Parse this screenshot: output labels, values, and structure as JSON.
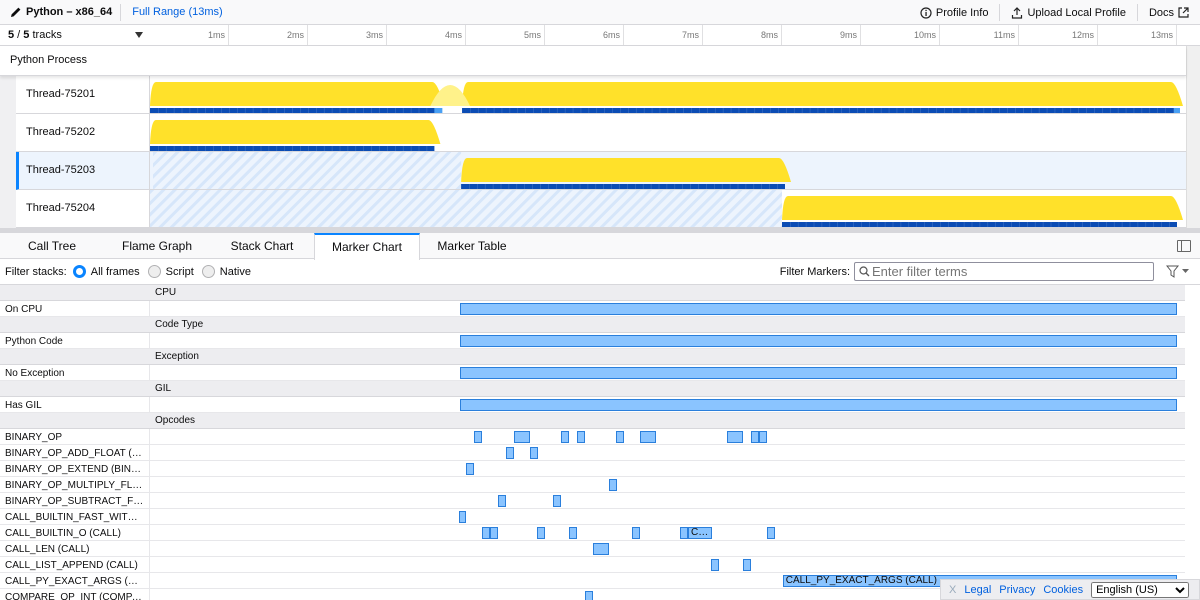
{
  "topbar": {
    "title": "Python – x86_64",
    "range": "Full Range (13ms)",
    "profile_info": "Profile Info",
    "upload": "Upload Local Profile",
    "docs": "Docs"
  },
  "timeline": {
    "tracks_visible": "5",
    "tracks_total": "5",
    "tracks_suffix": " tracks",
    "ticks": [
      "1ms",
      "2ms",
      "3ms",
      "4ms",
      "5ms",
      "6ms",
      "7ms",
      "8ms",
      "9ms",
      "10ms",
      "11ms",
      "12ms",
      "13ms"
    ],
    "duration_ms": 13,
    "process": "Python Process",
    "threads": [
      {
        "name": "Thread-75201",
        "active": [
          [
            0,
            3.65
          ],
          [
            3.95,
            13.0
          ]
        ],
        "selected": false
      },
      {
        "name": "Thread-75202",
        "active": [
          [
            0,
            3.6
          ]
        ],
        "selected": false
      },
      {
        "name": "Thread-75203",
        "active": [
          [
            3.9,
            8.0
          ]
        ],
        "selected": true
      },
      {
        "name": "Thread-75204",
        "active": [
          [
            8.0,
            13.0
          ]
        ],
        "selected": false
      }
    ],
    "colors": {
      "cpu_graph": "#ffe12a",
      "samples": "#0b4cb4",
      "selection": "#0a84ff"
    }
  },
  "tabs": [
    {
      "label": "Call Tree"
    },
    {
      "label": "Flame Graph"
    },
    {
      "label": "Stack Chart"
    },
    {
      "label": "Marker Chart",
      "active": true
    },
    {
      "label": "Marker Table"
    }
  ],
  "filter": {
    "label": "Filter stacks:",
    "options": [
      "All frames",
      "Script",
      "Native"
    ],
    "selected": "All frames",
    "markers_label": "Filter Markers:",
    "markers_placeholder": "Enter filter terms"
  },
  "marker_chart": {
    "rows": [
      {
        "group": "CPU"
      },
      {
        "name": "On CPU",
        "markers": [
          [
            3.92,
            13.0
          ]
        ]
      },
      {
        "group": "Code Type"
      },
      {
        "name": "Python Code",
        "markers": [
          [
            3.92,
            13.0
          ]
        ]
      },
      {
        "group": "Exception"
      },
      {
        "name": "No Exception",
        "markers": [
          [
            3.92,
            13.0
          ]
        ]
      },
      {
        "group": "GIL"
      },
      {
        "name": "Has GIL",
        "markers": [
          [
            3.92,
            13.0
          ]
        ]
      },
      {
        "group": "Opcodes"
      },
      {
        "name": "BINARY_OP",
        "markers": [
          [
            4.1,
            4.2
          ],
          [
            4.61,
            4.81
          ],
          [
            5.2,
            5.3
          ],
          [
            5.41,
            5.51
          ],
          [
            5.9,
            6.0
          ],
          [
            6.2,
            6.41
          ],
          [
            7.3,
            7.51
          ],
          [
            7.61,
            7.71
          ],
          [
            7.71,
            7.81
          ]
        ]
      },
      {
        "name": "BINARY_OP_ADD_FLOAT (B…",
        "markers": [
          [
            4.51,
            4.61
          ],
          [
            4.81,
            4.91
          ]
        ]
      },
      {
        "name": "BINARY_OP_EXTEND (BINA…",
        "markers": [
          [
            4.0,
            4.1
          ]
        ]
      },
      {
        "name": "BINARY_OP_MULTIPLY_FL…",
        "markers": [
          [
            5.81,
            5.91
          ]
        ]
      },
      {
        "name": "BINARY_OP_SUBTRACT_FL…",
        "markers": [
          [
            4.41,
            4.51
          ],
          [
            5.1,
            5.2
          ]
        ]
      },
      {
        "name": "CALL_BUILTIN_FAST_WITH…",
        "markers": [
          [
            3.91,
            4.0
          ]
        ]
      },
      {
        "name": "CALL_BUILTIN_O (CALL)",
        "markers": [
          [
            4.2,
            4.3
          ],
          [
            4.3,
            4.41
          ],
          [
            4.9,
            5.0
          ],
          [
            5.3,
            5.41
          ],
          [
            6.1,
            6.2
          ],
          [
            6.71,
            6.81
          ],
          [
            6.81,
            7.11,
            "C…"
          ],
          [
            7.81,
            7.91
          ]
        ]
      },
      {
        "name": "CALL_LEN (CALL)",
        "markers": [
          [
            5.61,
            5.81
          ]
        ]
      },
      {
        "name": "CALL_LIST_APPEND (CALL)",
        "markers": [
          [
            7.1,
            7.2
          ],
          [
            7.51,
            7.61
          ]
        ]
      },
      {
        "name": "CALL_PY_EXACT_ARGS (C…",
        "markers": [
          [
            8.01,
            13.0,
            "CALL_PY_EXACT_ARGS (CALL)"
          ]
        ]
      },
      {
        "name": "COMPARE_OP_INT (COMPA…",
        "markers": [
          [
            5.51,
            5.61
          ]
        ]
      }
    ],
    "colors": {
      "fill": "#8ac4ff",
      "border": "#2a7fdc"
    }
  },
  "footer": {
    "close": "X",
    "legal": "Legal",
    "privacy": "Privacy",
    "cookies": "Cookies",
    "language": "English (US)"
  }
}
